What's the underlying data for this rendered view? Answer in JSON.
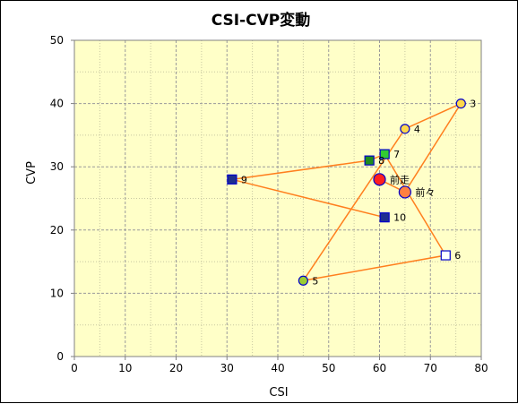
{
  "chart_data": {
    "type": "scatter",
    "title": "CSI-CVP変動",
    "xlabel": "CSI",
    "ylabel": "CVP",
    "xlim": [
      0,
      80
    ],
    "ylim": [
      0,
      50
    ],
    "xticks": [
      0,
      10,
      20,
      30,
      40,
      50,
      60,
      70,
      80
    ],
    "yticks": [
      0,
      10,
      20,
      30,
      40,
      50
    ],
    "grid": true,
    "plot_background": "#ffffc8",
    "line_color": "#ff7f1e",
    "path_order": [
      "前走",
      "前々",
      "3",
      "4",
      "5",
      "6",
      "7",
      "8",
      "9",
      "10"
    ],
    "points": [
      {
        "label": "前走",
        "x": 60,
        "y": 28,
        "marker": "circle-large",
        "fill": "#ff2020",
        "stroke": "#0000cc"
      },
      {
        "label": "前々",
        "x": 65,
        "y": 26,
        "marker": "circle-large",
        "fill": "#ff8040",
        "stroke": "#0000cc"
      },
      {
        "label": "3",
        "x": 76,
        "y": 40,
        "marker": "circle",
        "fill": "#ffd84a",
        "stroke": "#0000cc"
      },
      {
        "label": "4",
        "x": 65,
        "y": 36,
        "marker": "circle",
        "fill": "#ffd84a",
        "stroke": "#0000cc"
      },
      {
        "label": "5",
        "x": 45,
        "y": 12,
        "marker": "circle",
        "fill": "#9acd32",
        "stroke": "#0000cc"
      },
      {
        "label": "6",
        "x": 73,
        "y": 16,
        "marker": "square",
        "fill": "#ffffff",
        "stroke": "#0000cc"
      },
      {
        "label": "7",
        "x": 61,
        "y": 32,
        "marker": "square",
        "fill": "#32cd32",
        "stroke": "#0000cc"
      },
      {
        "label": "8",
        "x": 58,
        "y": 31,
        "marker": "square",
        "fill": "#1e8c1e",
        "stroke": "#0000cc"
      },
      {
        "label": "9",
        "x": 31,
        "y": 28,
        "marker": "square",
        "fill": "#1f2f8f",
        "stroke": "#0000cc"
      },
      {
        "label": "10",
        "x": 61,
        "y": 22,
        "marker": "square",
        "fill": "#1f2f8f",
        "stroke": "#0000cc"
      }
    ]
  }
}
